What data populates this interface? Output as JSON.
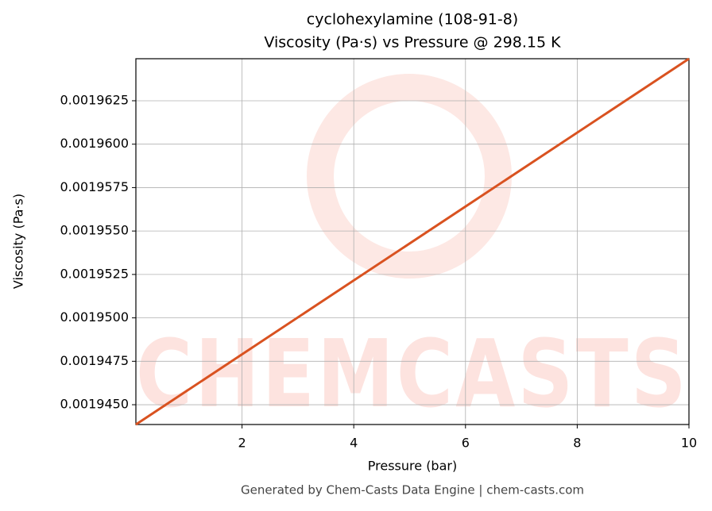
{
  "chart_data": {
    "type": "line",
    "title": "cyclohexylamine (108-91-8)",
    "subtitle": "Viscosity (Pa·s) vs Pressure @ 298.15 K",
    "xlabel": "Pressure (bar)",
    "ylabel": "Viscosity (Pa·s)",
    "footer": "Generated by Chem-Casts Data Engine | chem-casts.com",
    "watermark": "CHEMCASTS",
    "x": [
      0.1,
      10
    ],
    "series": [
      {
        "name": "Viscosity",
        "color": "#d95220",
        "values": [
          0.00194386,
          0.00196492
        ]
      }
    ],
    "xlim": [
      0.1,
      10
    ],
    "ylim": [
      0.00194386,
      0.00196492
    ],
    "xticks": [
      2,
      4,
      6,
      8,
      10
    ],
    "yticks": [
      {
        "value": 0.001945,
        "label": "0.0019450"
      },
      0.0019475,
      {
        "value": 0.00195,
        "label": "0.0019500"
      },
      0.0019525,
      {
        "value": 0.001955,
        "label": "0.0019550"
      },
      0.0019575,
      {
        "value": 0.00196,
        "label": "0.0019600"
      },
      0.0019625
    ],
    "grid": true
  }
}
